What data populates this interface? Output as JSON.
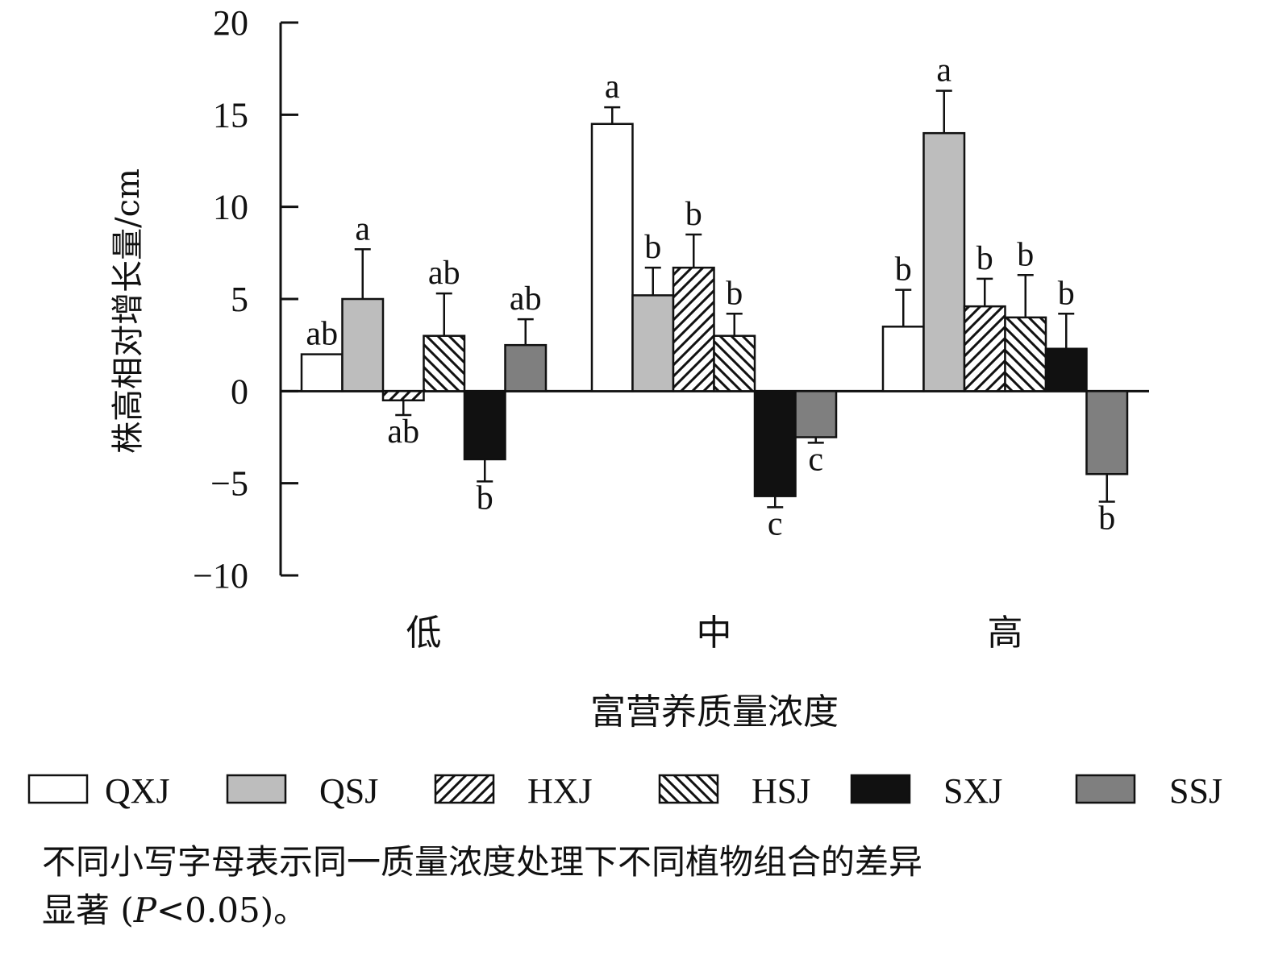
{
  "chart_data": {
    "type": "bar",
    "categories": [
      "低",
      "中",
      "高"
    ],
    "xlabel": "富营养质量浓度",
    "ylabel": "株高相对增长量/cm",
    "ylim": [
      -10,
      20
    ],
    "yticks": [
      "−10",
      "−5",
      "0",
      "5",
      "10",
      "15",
      "20"
    ],
    "ytick_values": [
      -10,
      -5,
      0,
      5,
      10,
      15,
      20
    ],
    "legend_position": "bottom",
    "series": [
      {
        "name": "QXJ",
        "pattern": "white",
        "fill": "#ffffff",
        "values": [
          2.0,
          14.5,
          3.5
        ],
        "errors": [
          0.0,
          0.9,
          2.0
        ],
        "letters": [
          "ab",
          "a",
          "b"
        ]
      },
      {
        "name": "QSJ",
        "pattern": "light-gray",
        "fill": "#bdbdbd",
        "values": [
          5.0,
          5.2,
          14.0
        ],
        "errors": [
          2.7,
          1.5,
          2.3
        ],
        "letters": [
          "a",
          "b",
          "a"
        ]
      },
      {
        "name": "HXJ",
        "pattern": "forward-hatch",
        "fill": "#ffffff",
        "values": [
          -0.5,
          6.7,
          4.6
        ],
        "errors": [
          0.8,
          1.8,
          1.5
        ],
        "letters": [
          "ab",
          "b",
          "b"
        ]
      },
      {
        "name": "HSJ",
        "pattern": "backward-hatch",
        "fill": "#ffffff",
        "values": [
          3.0,
          3.0,
          4.0
        ],
        "errors": [
          2.3,
          1.2,
          2.3
        ],
        "letters": [
          "ab",
          "b",
          "b"
        ]
      },
      {
        "name": "SXJ",
        "pattern": "black",
        "fill": "#111111",
        "values": [
          -3.7,
          -5.7,
          2.3
        ],
        "errors": [
          1.2,
          0.6,
          1.9
        ],
        "letters": [
          "b",
          "c",
          "b"
        ]
      },
      {
        "name": "SSJ",
        "pattern": "dark-gray",
        "fill": "#7f7f7f",
        "values": [
          2.5,
          -2.5,
          -4.5
        ],
        "errors": [
          1.4,
          0.3,
          1.5
        ],
        "letters": [
          "ab",
          "c",
          "b"
        ]
      }
    ]
  },
  "footnote": {
    "line1": "不同小写字母表示同一质量浓度处理下不同植物组合的差异",
    "line2_prefix": "显著 (",
    "line2_var": "P",
    "line2_suffix": "<0.05)。"
  }
}
